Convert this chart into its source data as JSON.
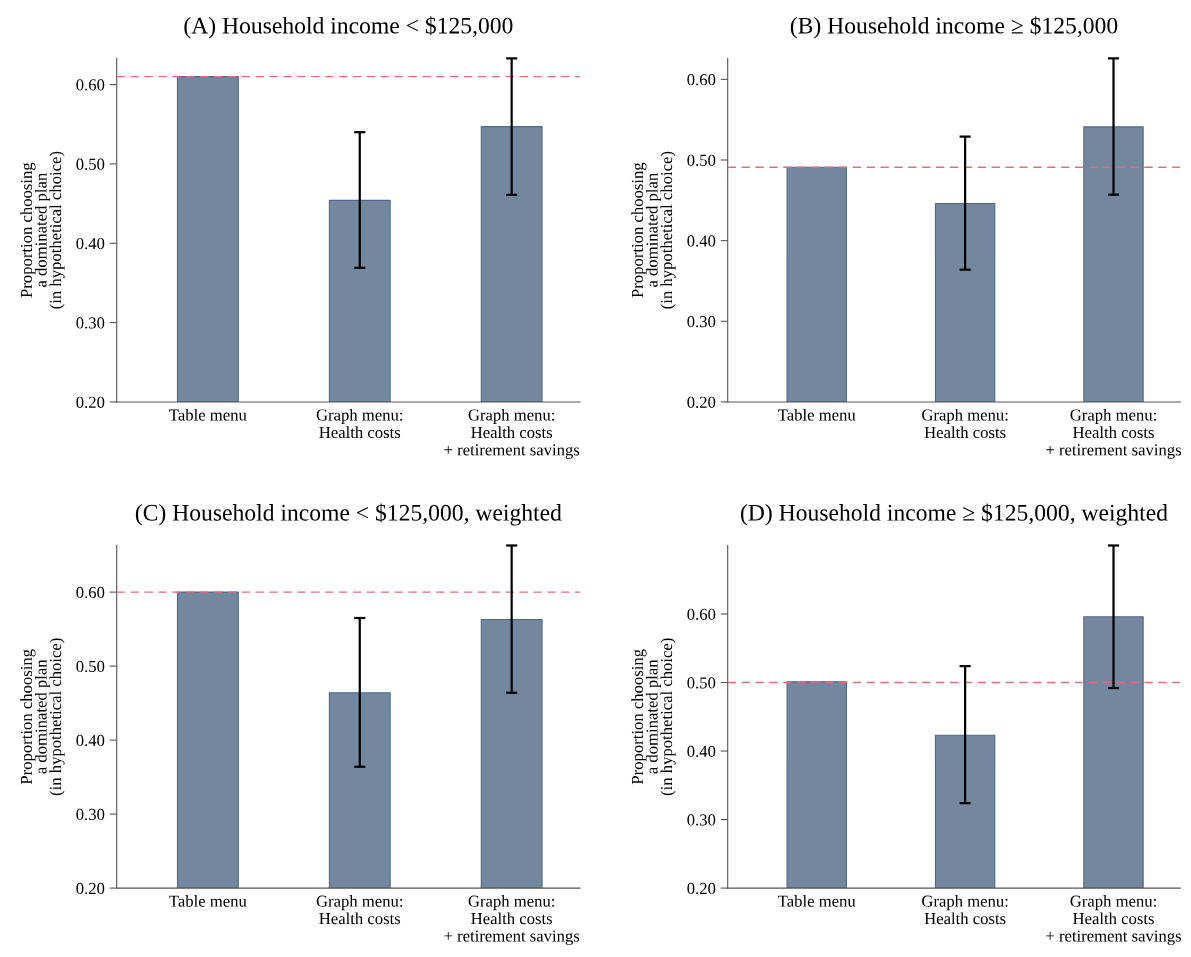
{
  "chart_data": [
    {
      "type": "bar",
      "title": "(A) Household income < $125,000",
      "ylabel": "Proportion choosing\na dominated plan\n(in hypothetical choice)",
      "categories": [
        "Table menu",
        "Graph menu:\nHealth costs",
        "Graph menu:\nHealth costs\n+ retirement savings"
      ],
      "values": [
        0.61,
        0.454,
        0.547
      ],
      "errors": [
        null,
        [
          0.369,
          0.54
        ],
        [
          0.461,
          0.633
        ]
      ],
      "color": "#73889f",
      "ylim": [
        0.2,
        0.633
      ],
      "yticks": [
        {
          "value": 0.2,
          "label": "0.20"
        },
        {
          "value": 0.3,
          "label": "0.30"
        },
        {
          "value": 0.4,
          "label": "0.40"
        },
        {
          "value": 0.5,
          "label": "0.50"
        },
        {
          "value": 0.6,
          "label": "0.60"
        }
      ],
      "ref_lines": [
        {
          "axis": "y",
          "value": 0.61,
          "color": "#d9707f",
          "line_style": "dashed"
        }
      ]
    },
    {
      "type": "bar",
      "title": "(B) Household income ≥ $125,000",
      "ylabel": "Proportion choosing\na dominated plan\n(in hypothetical choice)",
      "categories": [
        "Table menu",
        "Graph menu:\nHealth costs",
        "Graph menu:\nHealth costs\n+ retirement savings"
      ],
      "values": [
        0.491,
        0.446,
        0.541
      ],
      "errors": [
        null,
        [
          0.364,
          0.529
        ],
        [
          0.457,
          0.626
        ]
      ],
      "color": "#73889f",
      "ylim": [
        0.2,
        0.626
      ],
      "yticks": [
        {
          "value": 0.2,
          "label": "0.20"
        },
        {
          "value": 0.3,
          "label": "0.30"
        },
        {
          "value": 0.4,
          "label": "0.40"
        },
        {
          "value": 0.5,
          "label": "0.50"
        },
        {
          "value": 0.6,
          "label": "0.60"
        }
      ],
      "ref_lines": [
        {
          "axis": "y",
          "value": 0.491,
          "color": "#d9707f",
          "line_style": "dashed"
        }
      ]
    },
    {
      "type": "bar",
      "title": "(C) Household income < $125,000, weighted",
      "ylabel": "Proportion choosing\na dominated plan\n(in hypothetical choice)",
      "categories": [
        "Table menu",
        "Graph menu:\nHealth costs",
        "Graph menu:\nHealth costs\n+ retirement savings"
      ],
      "values": [
        0.6,
        0.464,
        0.563
      ],
      "errors": [
        null,
        [
          0.364,
          0.565
        ],
        [
          0.464,
          0.663
        ]
      ],
      "color": "#73889f",
      "ylim": [
        0.2,
        0.663
      ],
      "yticks": [
        {
          "value": 0.2,
          "label": "0.20"
        },
        {
          "value": 0.3,
          "label": "0.30"
        },
        {
          "value": 0.4,
          "label": "0.40"
        },
        {
          "value": 0.5,
          "label": "0.50"
        },
        {
          "value": 0.6,
          "label": "0.60"
        }
      ],
      "ref_lines": [
        {
          "axis": "y",
          "value": 0.6,
          "color": "#d9707f",
          "line_style": "dashed"
        }
      ]
    },
    {
      "type": "bar",
      "title": "(D) Household income ≥ $125,000, weighted",
      "ylabel": "Proportion choosing\na dominated plan\n(in hypothetical choice)",
      "categories": [
        "Table menu",
        "Graph menu:\nHealth costs",
        "Graph menu:\nHealth costs\n+ retirement savings"
      ],
      "values": [
        0.501,
        0.423,
        0.596
      ],
      "errors": [
        null,
        [
          0.324,
          0.524
        ],
        [
          0.492,
          0.7
        ]
      ],
      "color": "#73889f",
      "ylim": [
        0.2,
        0.7
      ],
      "yticks": [
        {
          "value": 0.2,
          "label": "0.20"
        },
        {
          "value": 0.3,
          "label": "0.30"
        },
        {
          "value": 0.4,
          "label": "0.40"
        },
        {
          "value": 0.5,
          "label": "0.50"
        },
        {
          "value": 0.6,
          "label": "0.60"
        }
      ],
      "ref_lines": [
        {
          "axis": "y",
          "value": 0.5,
          "color": "#d9707f",
          "line_style": "dashed"
        }
      ]
    }
  ]
}
